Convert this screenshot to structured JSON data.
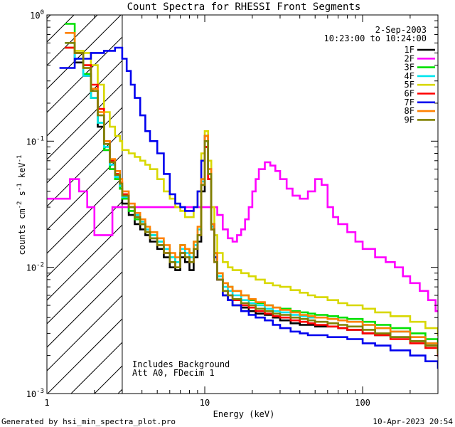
{
  "chart_data": {
    "type": "line",
    "title": "Count Spectra for RHESSI Front Segments",
    "xlabel": "Energy (keV)",
    "ylabel_parts": {
      "base": "counts cm",
      "e1": "-2",
      "s": " s",
      "e2": "-1",
      "kev": " keV",
      "e3": "-1"
    },
    "xscale": "log",
    "yscale": "log",
    "xlim": [
      1.0,
      300.0
    ],
    "ylim": [
      0.001,
      1.0
    ],
    "x_ticks": [
      {
        "v": 1,
        "label": "1"
      },
      {
        "v": 10,
        "label": "10"
      },
      {
        "v": 100,
        "label": "100"
      }
    ],
    "y_ticks": [
      {
        "v": 1.0,
        "base": "10",
        "exp": "0"
      },
      {
        "v": 0.1,
        "base": "10",
        "exp": "-1"
      },
      {
        "v": 0.01,
        "base": "10",
        "exp": "-2"
      },
      {
        "v": 0.001,
        "base": "10",
        "exp": "-3"
      }
    ],
    "date": "2-Sep-2003",
    "time_range": "10:23:00 to 10:24:00",
    "hatched_below_keV": 3.0,
    "annotations": [
      "Includes Background",
      "Att A0, FDecim 1"
    ],
    "legend_position": "top-right",
    "series": [
      {
        "name": "1F",
        "color": "#000000",
        "x": [
          1.3,
          1.5,
          1.7,
          1.9,
          2.1,
          2.3,
          2.5,
          2.7,
          2.9,
          3.0,
          3.3,
          3.6,
          3.9,
          4.2,
          4.5,
          5.0,
          5.5,
          6.0,
          6.5,
          7.0,
          7.5,
          8.0,
          8.5,
          9.0,
          9.5,
          10.0,
          10.5,
          11.0,
          11.5,
          12.0,
          13.0,
          14.0,
          15.0,
          17.0,
          19.0,
          21.0,
          24.0,
          27.0,
          30.0,
          35.0,
          40.0,
          45.0,
          50.0,
          60.0,
          70.0,
          80.0,
          100.0,
          120.0,
          150.0,
          200.0,
          250.0,
          300.0
        ],
        "y": [
          0.55,
          0.42,
          0.33,
          0.22,
          0.13,
          0.085,
          0.06,
          0.05,
          0.042,
          0.032,
          0.026,
          0.022,
          0.02,
          0.018,
          0.016,
          0.014,
          0.012,
          0.01,
          0.0095,
          0.012,
          0.011,
          0.0095,
          0.012,
          0.016,
          0.04,
          0.09,
          0.05,
          0.02,
          0.012,
          0.008,
          0.006,
          0.0055,
          0.005,
          0.0048,
          0.0045,
          0.0043,
          0.0042,
          0.004,
          0.0038,
          0.0036,
          0.0035,
          0.0035,
          0.0034,
          0.0034,
          0.0033,
          0.0032,
          0.003,
          0.0029,
          0.0028,
          0.0026,
          0.0024,
          0.0022
        ]
      },
      {
        "name": "2F",
        "color": "#ff00ff",
        "x": [
          1.0,
          1.2,
          1.4,
          1.6,
          1.8,
          2.0,
          2.3,
          2.6,
          3.0,
          3.5,
          4.0,
          5.0,
          6.0,
          7.0,
          8.0,
          9.0,
          10.0,
          11.0,
          12.0,
          13.0,
          14.0,
          15.0,
          16.0,
          17.0,
          18.0,
          19.0,
          20.0,
          21.0,
          22.0,
          24.0,
          26.0,
          28.0,
          30.0,
          33.0,
          36.0,
          40.0,
          45.0,
          50.0,
          55.0,
          60.0,
          65.0,
          70.0,
          80.0,
          90.0,
          100.0,
          120.0,
          140.0,
          160.0,
          180.0,
          200.0,
          230.0,
          260.0,
          290.0
        ],
        "y": [
          0.035,
          0.035,
          0.05,
          0.04,
          0.03,
          0.018,
          0.018,
          0.03,
          0.03,
          0.03,
          0.03,
          0.03,
          0.03,
          0.03,
          0.03,
          0.03,
          0.03,
          0.03,
          0.026,
          0.02,
          0.017,
          0.016,
          0.018,
          0.02,
          0.024,
          0.03,
          0.04,
          0.05,
          0.06,
          0.068,
          0.064,
          0.058,
          0.05,
          0.042,
          0.037,
          0.035,
          0.04,
          0.05,
          0.045,
          0.03,
          0.025,
          0.022,
          0.019,
          0.016,
          0.014,
          0.012,
          0.011,
          0.01,
          0.0085,
          0.0075,
          0.0065,
          0.0055,
          0.0045
        ]
      },
      {
        "name": "3F",
        "color": "#00e000",
        "x": [
          1.3,
          1.5,
          1.7,
          1.9,
          2.1,
          2.3,
          2.5,
          2.7,
          2.9,
          3.0,
          3.3,
          3.6,
          3.9,
          4.2,
          4.5,
          5.0,
          5.5,
          6.0,
          6.5,
          7.0,
          7.5,
          8.0,
          8.5,
          9.0,
          9.5,
          10.0,
          10.5,
          11.0,
          11.5,
          12.0,
          13.0,
          14.0,
          15.0,
          17.0,
          19.0,
          21.0,
          24.0,
          27.0,
          30.0,
          35.0,
          40.0,
          45.0,
          50.0,
          60.0,
          70.0,
          80.0,
          100.0,
          120.0,
          150.0,
          200.0,
          250.0,
          300.0
        ],
        "y": [
          0.85,
          0.5,
          0.34,
          0.22,
          0.14,
          0.085,
          0.06,
          0.05,
          0.042,
          0.035,
          0.028,
          0.024,
          0.022,
          0.02,
          0.018,
          0.016,
          0.014,
          0.012,
          0.011,
          0.015,
          0.014,
          0.013,
          0.016,
          0.02,
          0.05,
          0.11,
          0.06,
          0.022,
          0.013,
          0.009,
          0.0075,
          0.007,
          0.0065,
          0.006,
          0.0055,
          0.0052,
          0.005,
          0.0048,
          0.0047,
          0.0045,
          0.0044,
          0.0043,
          0.0042,
          0.0041,
          0.004,
          0.0039,
          0.0037,
          0.0035,
          0.0033,
          0.003,
          0.0027,
          0.0024
        ]
      },
      {
        "name": "4F",
        "color": "#00e5ee",
        "x": [
          1.3,
          1.5,
          1.7,
          1.9,
          2.1,
          2.3,
          2.5,
          2.7,
          2.9,
          3.0,
          3.3,
          3.6,
          3.9,
          4.2,
          4.5,
          5.0,
          5.5,
          6.0,
          6.5,
          7.0,
          7.5,
          8.0,
          8.5,
          9.0,
          9.5,
          10.0,
          10.5,
          11.0,
          11.5,
          12.0,
          13.0,
          14.0,
          15.0,
          17.0,
          19.0,
          21.0,
          24.0,
          27.0,
          30.0,
          35.0,
          40.0,
          45.0,
          50.0,
          60.0,
          70.0,
          80.0,
          100.0,
          120.0,
          150.0,
          200.0,
          250.0,
          300.0
        ],
        "y": [
          0.6,
          0.45,
          0.33,
          0.22,
          0.14,
          0.09,
          0.065,
          0.052,
          0.044,
          0.036,
          0.03,
          0.026,
          0.023,
          0.02,
          0.018,
          0.016,
          0.014,
          0.012,
          0.011,
          0.014,
          0.013,
          0.012,
          0.015,
          0.02,
          0.048,
          0.1,
          0.055,
          0.021,
          0.012,
          0.0085,
          0.007,
          0.0065,
          0.006,
          0.0055,
          0.0052,
          0.005,
          0.0047,
          0.0045,
          0.0044,
          0.0042,
          0.0041,
          0.004,
          0.004,
          0.0039,
          0.0038,
          0.0037,
          0.0035,
          0.0033,
          0.0031,
          0.0028,
          0.0025,
          0.0022
        ]
      },
      {
        "name": "5F",
        "color": "#d8d800",
        "x": [
          1.3,
          1.5,
          1.7,
          1.9,
          2.1,
          2.3,
          2.5,
          2.7,
          2.9,
          3.0,
          3.3,
          3.6,
          3.9,
          4.2,
          4.5,
          5.0,
          5.5,
          6.0,
          6.5,
          7.0,
          7.5,
          8.0,
          8.5,
          9.0,
          9.5,
          10.0,
          10.5,
          11.0,
          11.5,
          12.0,
          13.0,
          14.0,
          15.0,
          17.0,
          19.0,
          21.0,
          24.0,
          27.0,
          30.0,
          35.0,
          40.0,
          45.0,
          50.0,
          60.0,
          70.0,
          80.0,
          100.0,
          120.0,
          150.0,
          200.0,
          250.0,
          300.0
        ],
        "y": [
          0.55,
          0.52,
          0.5,
          0.4,
          0.28,
          0.17,
          0.13,
          0.11,
          0.1,
          0.085,
          0.08,
          0.075,
          0.07,
          0.065,
          0.06,
          0.05,
          0.04,
          0.035,
          0.03,
          0.028,
          0.025,
          0.025,
          0.03,
          0.04,
          0.08,
          0.12,
          0.07,
          0.03,
          0.018,
          0.013,
          0.011,
          0.01,
          0.0095,
          0.009,
          0.0085,
          0.008,
          0.0075,
          0.0072,
          0.007,
          0.0066,
          0.0063,
          0.006,
          0.0058,
          0.0055,
          0.0052,
          0.005,
          0.0047,
          0.0044,
          0.0041,
          0.0037,
          0.0033,
          0.0029
        ]
      },
      {
        "name": "6F",
        "color": "#ff0000",
        "x": [
          1.3,
          1.5,
          1.7,
          1.9,
          2.1,
          2.3,
          2.5,
          2.7,
          2.9,
          3.0,
          3.3,
          3.6,
          3.9,
          4.2,
          4.5,
          5.0,
          5.5,
          6.0,
          6.5,
          7.0,
          7.5,
          8.0,
          8.5,
          9.0,
          9.5,
          10.0,
          10.5,
          11.0,
          11.5,
          12.0,
          13.0,
          14.0,
          15.0,
          17.0,
          19.0,
          21.0,
          24.0,
          27.0,
          30.0,
          35.0,
          40.0,
          45.0,
          50.0,
          60.0,
          70.0,
          80.0,
          100.0,
          120.0,
          150.0,
          200.0,
          250.0,
          300.0
        ],
        "y": [
          0.55,
          0.5,
          0.4,
          0.28,
          0.18,
          0.1,
          0.07,
          0.055,
          0.047,
          0.038,
          0.03,
          0.025,
          0.022,
          0.019,
          0.017,
          0.015,
          0.013,
          0.011,
          0.01,
          0.013,
          0.012,
          0.011,
          0.014,
          0.018,
          0.045,
          0.09,
          0.05,
          0.02,
          0.011,
          0.008,
          0.0065,
          0.006,
          0.0055,
          0.005,
          0.0048,
          0.0045,
          0.0043,
          0.0041,
          0.004,
          0.0038,
          0.0037,
          0.0036,
          0.0035,
          0.0034,
          0.0033,
          0.0032,
          0.003,
          0.0029,
          0.0027,
          0.0025,
          0.0023,
          0.002
        ]
      },
      {
        "name": "7F",
        "color": "#0000ee",
        "x": [
          1.2,
          1.3,
          1.5,
          1.7,
          1.9,
          2.1,
          2.3,
          2.5,
          2.7,
          2.9,
          3.0,
          3.2,
          3.4,
          3.6,
          3.9,
          4.2,
          4.5,
          5.0,
          5.5,
          6.0,
          6.5,
          7.0,
          7.5,
          8.0,
          8.5,
          9.0,
          9.5,
          10.0,
          10.5,
          11.0,
          11.5,
          12.0,
          13.0,
          14.0,
          15.0,
          17.0,
          19.0,
          21.0,
          24.0,
          27.0,
          30.0,
          35.0,
          40.0,
          45.0,
          50.0,
          60.0,
          70.0,
          80.0,
          100.0,
          120.0,
          150.0,
          200.0,
          250.0,
          300.0
        ],
        "y": [
          0.38,
          0.38,
          0.45,
          0.45,
          0.5,
          0.5,
          0.52,
          0.52,
          0.55,
          0.55,
          0.45,
          0.36,
          0.28,
          0.22,
          0.16,
          0.12,
          0.1,
          0.08,
          0.055,
          0.038,
          0.032,
          0.03,
          0.028,
          0.028,
          0.03,
          0.04,
          0.07,
          0.11,
          0.06,
          0.022,
          0.012,
          0.008,
          0.006,
          0.0055,
          0.005,
          0.0045,
          0.0042,
          0.004,
          0.0038,
          0.0035,
          0.0033,
          0.0031,
          0.003,
          0.0029,
          0.0029,
          0.0028,
          0.0028,
          0.0027,
          0.0025,
          0.0024,
          0.0022,
          0.002,
          0.0018,
          0.0016
        ]
      },
      {
        "name": "8F",
        "color": "#ff8000",
        "x": [
          1.3,
          1.5,
          1.7,
          1.9,
          2.1,
          2.3,
          2.5,
          2.7,
          2.9,
          3.0,
          3.3,
          3.6,
          3.9,
          4.2,
          4.5,
          5.0,
          5.5,
          6.0,
          6.5,
          7.0,
          7.5,
          8.0,
          8.5,
          9.0,
          9.5,
          10.0,
          10.5,
          11.0,
          11.5,
          12.0,
          13.0,
          14.0,
          15.0,
          17.0,
          19.0,
          21.0,
          24.0,
          27.0,
          30.0,
          35.0,
          40.0,
          45.0,
          50.0,
          60.0,
          70.0,
          80.0,
          100.0,
          120.0,
          150.0,
          200.0,
          250.0,
          300.0
        ],
        "y": [
          0.72,
          0.5,
          0.38,
          0.26,
          0.17,
          0.1,
          0.072,
          0.058,
          0.05,
          0.04,
          0.032,
          0.027,
          0.024,
          0.021,
          0.019,
          0.017,
          0.015,
          0.013,
          0.012,
          0.015,
          0.014,
          0.013,
          0.016,
          0.021,
          0.05,
          0.11,
          0.06,
          0.022,
          0.013,
          0.009,
          0.0075,
          0.007,
          0.0065,
          0.006,
          0.0056,
          0.0053,
          0.005,
          0.0048,
          0.0046,
          0.0044,
          0.0042,
          0.0041,
          0.004,
          0.0039,
          0.0038,
          0.0037,
          0.0035,
          0.0033,
          0.0031,
          0.0028,
          0.0025,
          0.0022
        ]
      },
      {
        "name": "9F",
        "color": "#808000",
        "x": [
          1.3,
          1.5,
          1.7,
          1.9,
          2.1,
          2.3,
          2.5,
          2.7,
          2.9,
          3.0,
          3.3,
          3.6,
          3.9,
          4.2,
          4.5,
          5.0,
          5.5,
          6.0,
          6.5,
          7.0,
          7.5,
          8.0,
          8.5,
          9.0,
          9.5,
          10.0,
          10.5,
          11.0,
          11.5,
          12.0,
          13.0,
          14.0,
          15.0,
          17.0,
          19.0,
          21.0,
          24.0,
          27.0,
          30.0,
          35.0,
          40.0,
          45.0,
          50.0,
          60.0,
          70.0,
          80.0,
          100.0,
          120.0,
          150.0,
          200.0,
          250.0,
          300.0
        ],
        "y": [
          0.6,
          0.5,
          0.38,
          0.25,
          0.16,
          0.095,
          0.068,
          0.054,
          0.046,
          0.037,
          0.03,
          0.025,
          0.022,
          0.019,
          0.017,
          0.015,
          0.013,
          0.011,
          0.01,
          0.013,
          0.012,
          0.011,
          0.014,
          0.018,
          0.045,
          0.1,
          0.055,
          0.02,
          0.011,
          0.008,
          0.0065,
          0.006,
          0.0056,
          0.0052,
          0.005,
          0.0047,
          0.0045,
          0.0043,
          0.0042,
          0.004,
          0.0039,
          0.0038,
          0.0037,
          0.0036,
          0.0035,
          0.0034,
          0.0032,
          0.003,
          0.0028,
          0.0026,
          0.0024,
          0.0021
        ]
      }
    ]
  },
  "footer": {
    "left": "Generated by hsi_min_spectra_plot.pro",
    "right": "10-Apr-2023 20:54"
  }
}
